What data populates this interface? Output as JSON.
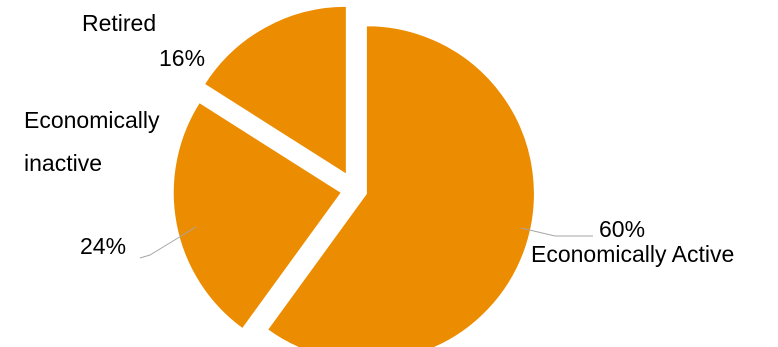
{
  "chart_data": {
    "type": "pie",
    "title": "",
    "legend": "none",
    "start_angle_deg": 0,
    "direction": "clockwise",
    "exploded": true,
    "color": "#EC8C00",
    "slices": [
      {
        "key": "active",
        "value": 60,
        "value_label": "60%",
        "category_label": "Economically Active"
      },
      {
        "key": "inactive",
        "value": 24,
        "value_label": "24%",
        "category_label": "Economically inactive"
      },
      {
        "key": "retired",
        "value": 16,
        "value_label": "16%",
        "category_label": "Retired"
      }
    ]
  }
}
